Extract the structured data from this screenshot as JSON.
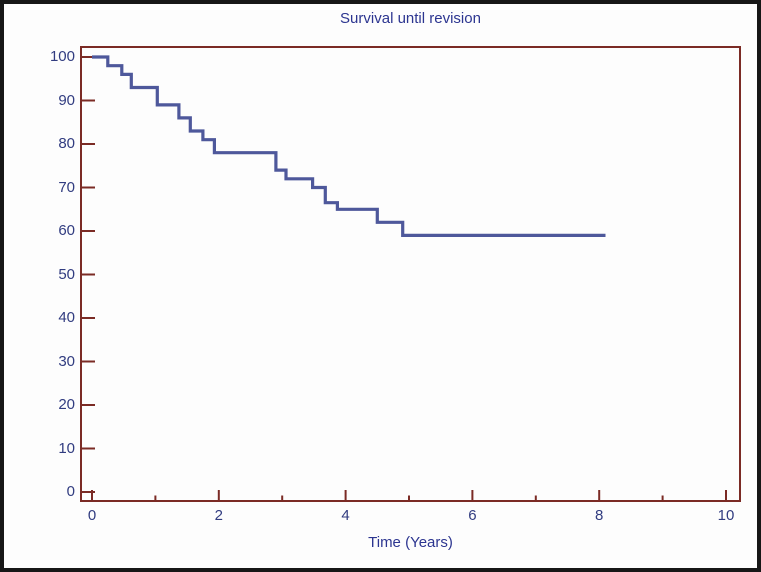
{
  "figure": {
    "title": "Survival until revision",
    "x_axis_label": "Time (Years)"
  },
  "colors": {
    "background": "#fdfdfd",
    "outer_border": "#171717",
    "frame": "#7b2b25",
    "tick": "#7b2b25",
    "curve": "#4e589b",
    "text": "#313c80",
    "title": "#2c3590"
  },
  "chart_data": {
    "type": "line",
    "subtype": "kaplan-meier-step",
    "title": "Survival until revision",
    "xlabel": "Time (Years)",
    "ylabel": "",
    "xlim": [
      0,
      10
    ],
    "ylim": [
      0,
      100
    ],
    "grid": false,
    "legend": null,
    "x_major_ticks": [
      0,
      2,
      4,
      6,
      8,
      10
    ],
    "x_minor_ticks": [
      1,
      3,
      5,
      7,
      9
    ],
    "y_ticks": [
      0,
      10,
      20,
      30,
      40,
      50,
      60,
      70,
      80,
      90,
      100
    ],
    "series": [
      {
        "name": "Survival until revision",
        "color": "#4e589b",
        "steps": [
          [
            0.0,
            100
          ],
          [
            0.25,
            98
          ],
          [
            0.47,
            96
          ],
          [
            0.62,
            93
          ],
          [
            1.03,
            89
          ],
          [
            1.37,
            86
          ],
          [
            1.55,
            83
          ],
          [
            1.75,
            81
          ],
          [
            1.93,
            78
          ],
          [
            2.9,
            74
          ],
          [
            3.06,
            72
          ],
          [
            3.48,
            70
          ],
          [
            3.68,
            66.5
          ],
          [
            3.87,
            65
          ],
          [
            4.5,
            62
          ],
          [
            4.9,
            59
          ]
        ],
        "end_time": 8.1,
        "final_value": 59
      }
    ]
  }
}
